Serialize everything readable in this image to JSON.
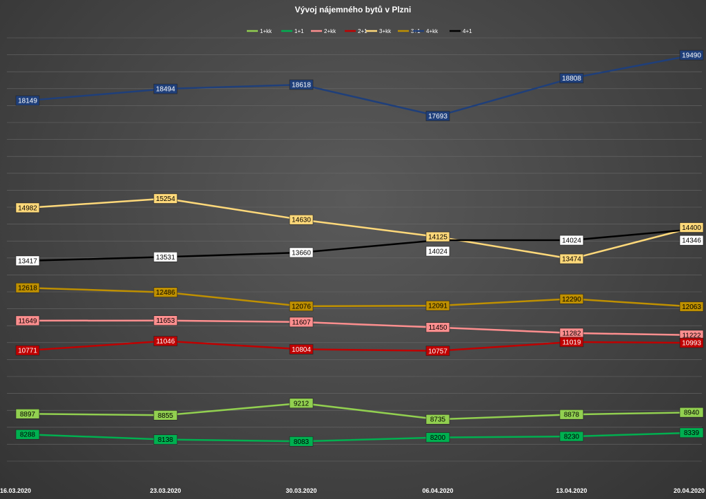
{
  "chart_data": {
    "type": "line",
    "title": "Vývoj nájemného  bytů v Plzni",
    "categories": [
      "16.03.2020",
      "23.03.2020",
      "30.03.2020",
      "06.04.2020",
      "13.04.2020",
      "20.04.2020"
    ],
    "ylim": [
      7500,
      20000
    ],
    "grid": true,
    "legend": "top",
    "series": [
      {
        "name": "1+kk",
        "color": "#92d050",
        "text_color": "#000000",
        "values": [
          8897,
          8855,
          9212,
          8735,
          8878,
          8940
        ]
      },
      {
        "name": "1+1",
        "color": "#00b050",
        "text_color": "#000000",
        "values": [
          8288,
          8138,
          8083,
          8200,
          8230,
          8339
        ]
      },
      {
        "name": "2+kk",
        "color": "#ff8f8f",
        "text_color": "#000000",
        "values": [
          11649,
          11653,
          11607,
          11450,
          11282,
          11222
        ]
      },
      {
        "name": "2+1",
        "color": "#c00000",
        "text_color": "#ffffff",
        "values": [
          10771,
          11046,
          10804,
          10757,
          11019,
          10993
        ]
      },
      {
        "name": "3+kk",
        "color": "#ffd97a",
        "text_color": "#000000",
        "values": [
          14982,
          15254,
          14630,
          14125,
          13474,
          14400
        ]
      },
      {
        "name": "3+1",
        "color": "#bf9000",
        "text_color": "#000000",
        "values": [
          12618,
          12486,
          12076,
          12091,
          12290,
          12063
        ]
      },
      {
        "name": "4+kk",
        "color": "#1f3f7a",
        "text_color": "#ffffff",
        "values": [
          18149,
          18494,
          18618,
          17693,
          18808,
          19490
        ]
      },
      {
        "name": "4+1",
        "color": "#000000",
        "text_color": "#000000",
        "label_bg": "#ffffff",
        "values": [
          13417,
          13531,
          13660,
          14024,
          14024,
          14346
        ]
      }
    ]
  }
}
